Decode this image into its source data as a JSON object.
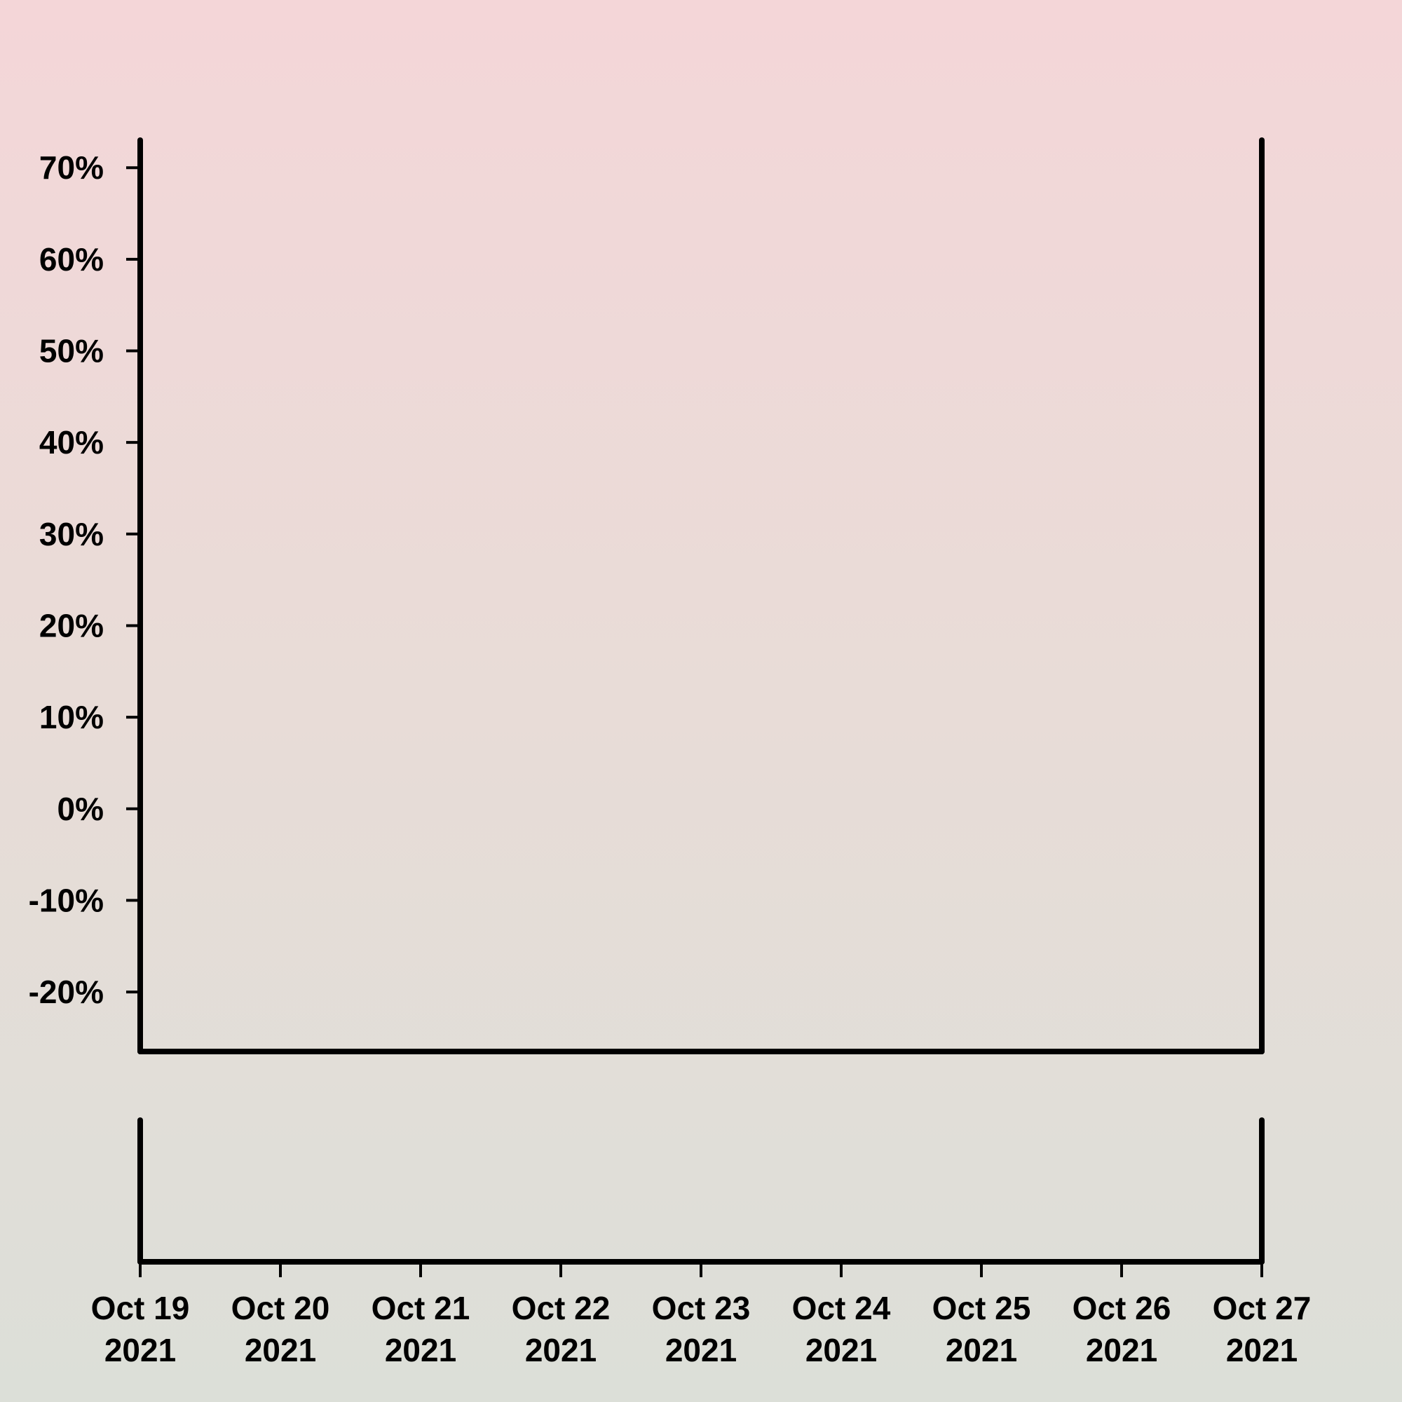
{
  "chart_data": [
    {
      "type": "candlestick",
      "panel": "price",
      "yaxis": {
        "ylim": [
          -26.5,
          73
        ],
        "ticks": [
          70,
          60,
          50,
          40,
          30,
          20,
          10,
          0,
          -10,
          -20
        ],
        "tick_labels": [
          "70%",
          "60%",
          "50%",
          "40%",
          "30%",
          "20%",
          "10%",
          "0%",
          "-10%",
          "-20%"
        ]
      },
      "xlim": [
        "2021-10-19",
        "2021-10-27"
      ],
      "colors": {
        "up": "#f0a830",
        "down": "#e06060",
        "bands": "#4ee84e",
        "mid_band": "#7ce87c"
      },
      "candles": [],
      "bollinger": {
        "period": 20,
        "stddev": 2
      }
    },
    {
      "type": "bar",
      "panel": "volume",
      "color": "#d84040",
      "values": []
    }
  ],
  "xaxis": {
    "ticks": [
      "2021-10-19",
      "2021-10-20",
      "2021-10-21",
      "2021-10-22",
      "2021-10-23",
      "2021-10-24",
      "2021-10-25",
      "2021-10-26",
      "2021-10-27"
    ],
    "tick_labels": [
      [
        "Oct 19",
        "2021"
      ],
      [
        "Oct 20",
        "2021"
      ],
      [
        "Oct 21",
        "2021"
      ],
      [
        "Oct 22",
        "2021"
      ],
      [
        "Oct 23",
        "2021"
      ],
      [
        "Oct 24",
        "2021"
      ],
      [
        "Oct 25",
        "2021"
      ],
      [
        "Oct 26",
        "2021"
      ],
      [
        "Oct 27",
        "2021"
      ]
    ]
  },
  "grid": false
}
